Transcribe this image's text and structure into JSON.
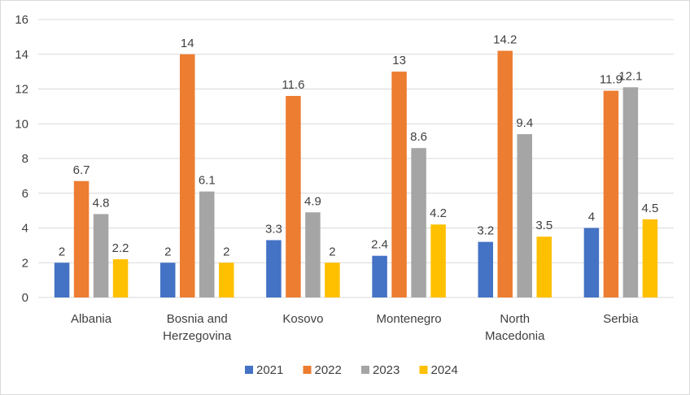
{
  "chart_data": {
    "type": "bar",
    "categories": [
      [
        "Albania"
      ],
      [
        "Bosnia and",
        "Herzegovina"
      ],
      [
        "Kosovo"
      ],
      [
        "Montenegro"
      ],
      [
        "North",
        "Macedonia"
      ],
      [
        "Serbia"
      ]
    ],
    "series": [
      {
        "name": "2021",
        "color": "#4472C4",
        "values": [
          2,
          2,
          3.3,
          2.4,
          3.2,
          4
        ]
      },
      {
        "name": "2022",
        "color": "#ED7D31",
        "values": [
          6.7,
          14,
          11.6,
          13,
          14.2,
          11.9
        ]
      },
      {
        "name": "2023",
        "color": "#A5A5A5",
        "values": [
          4.8,
          6.1,
          4.9,
          8.6,
          9.4,
          12.1
        ]
      },
      {
        "name": "2024",
        "color": "#FFC000",
        "values": [
          2.2,
          2,
          2,
          4.2,
          3.5,
          4.5
        ]
      }
    ],
    "yticks": [
      0,
      2,
      4,
      6,
      8,
      10,
      12,
      14,
      16
    ],
    "ylim": [
      0,
      16
    ],
    "grid": true,
    "legend_position": "bottom",
    "title": "",
    "xlabel": "",
    "ylabel": ""
  }
}
